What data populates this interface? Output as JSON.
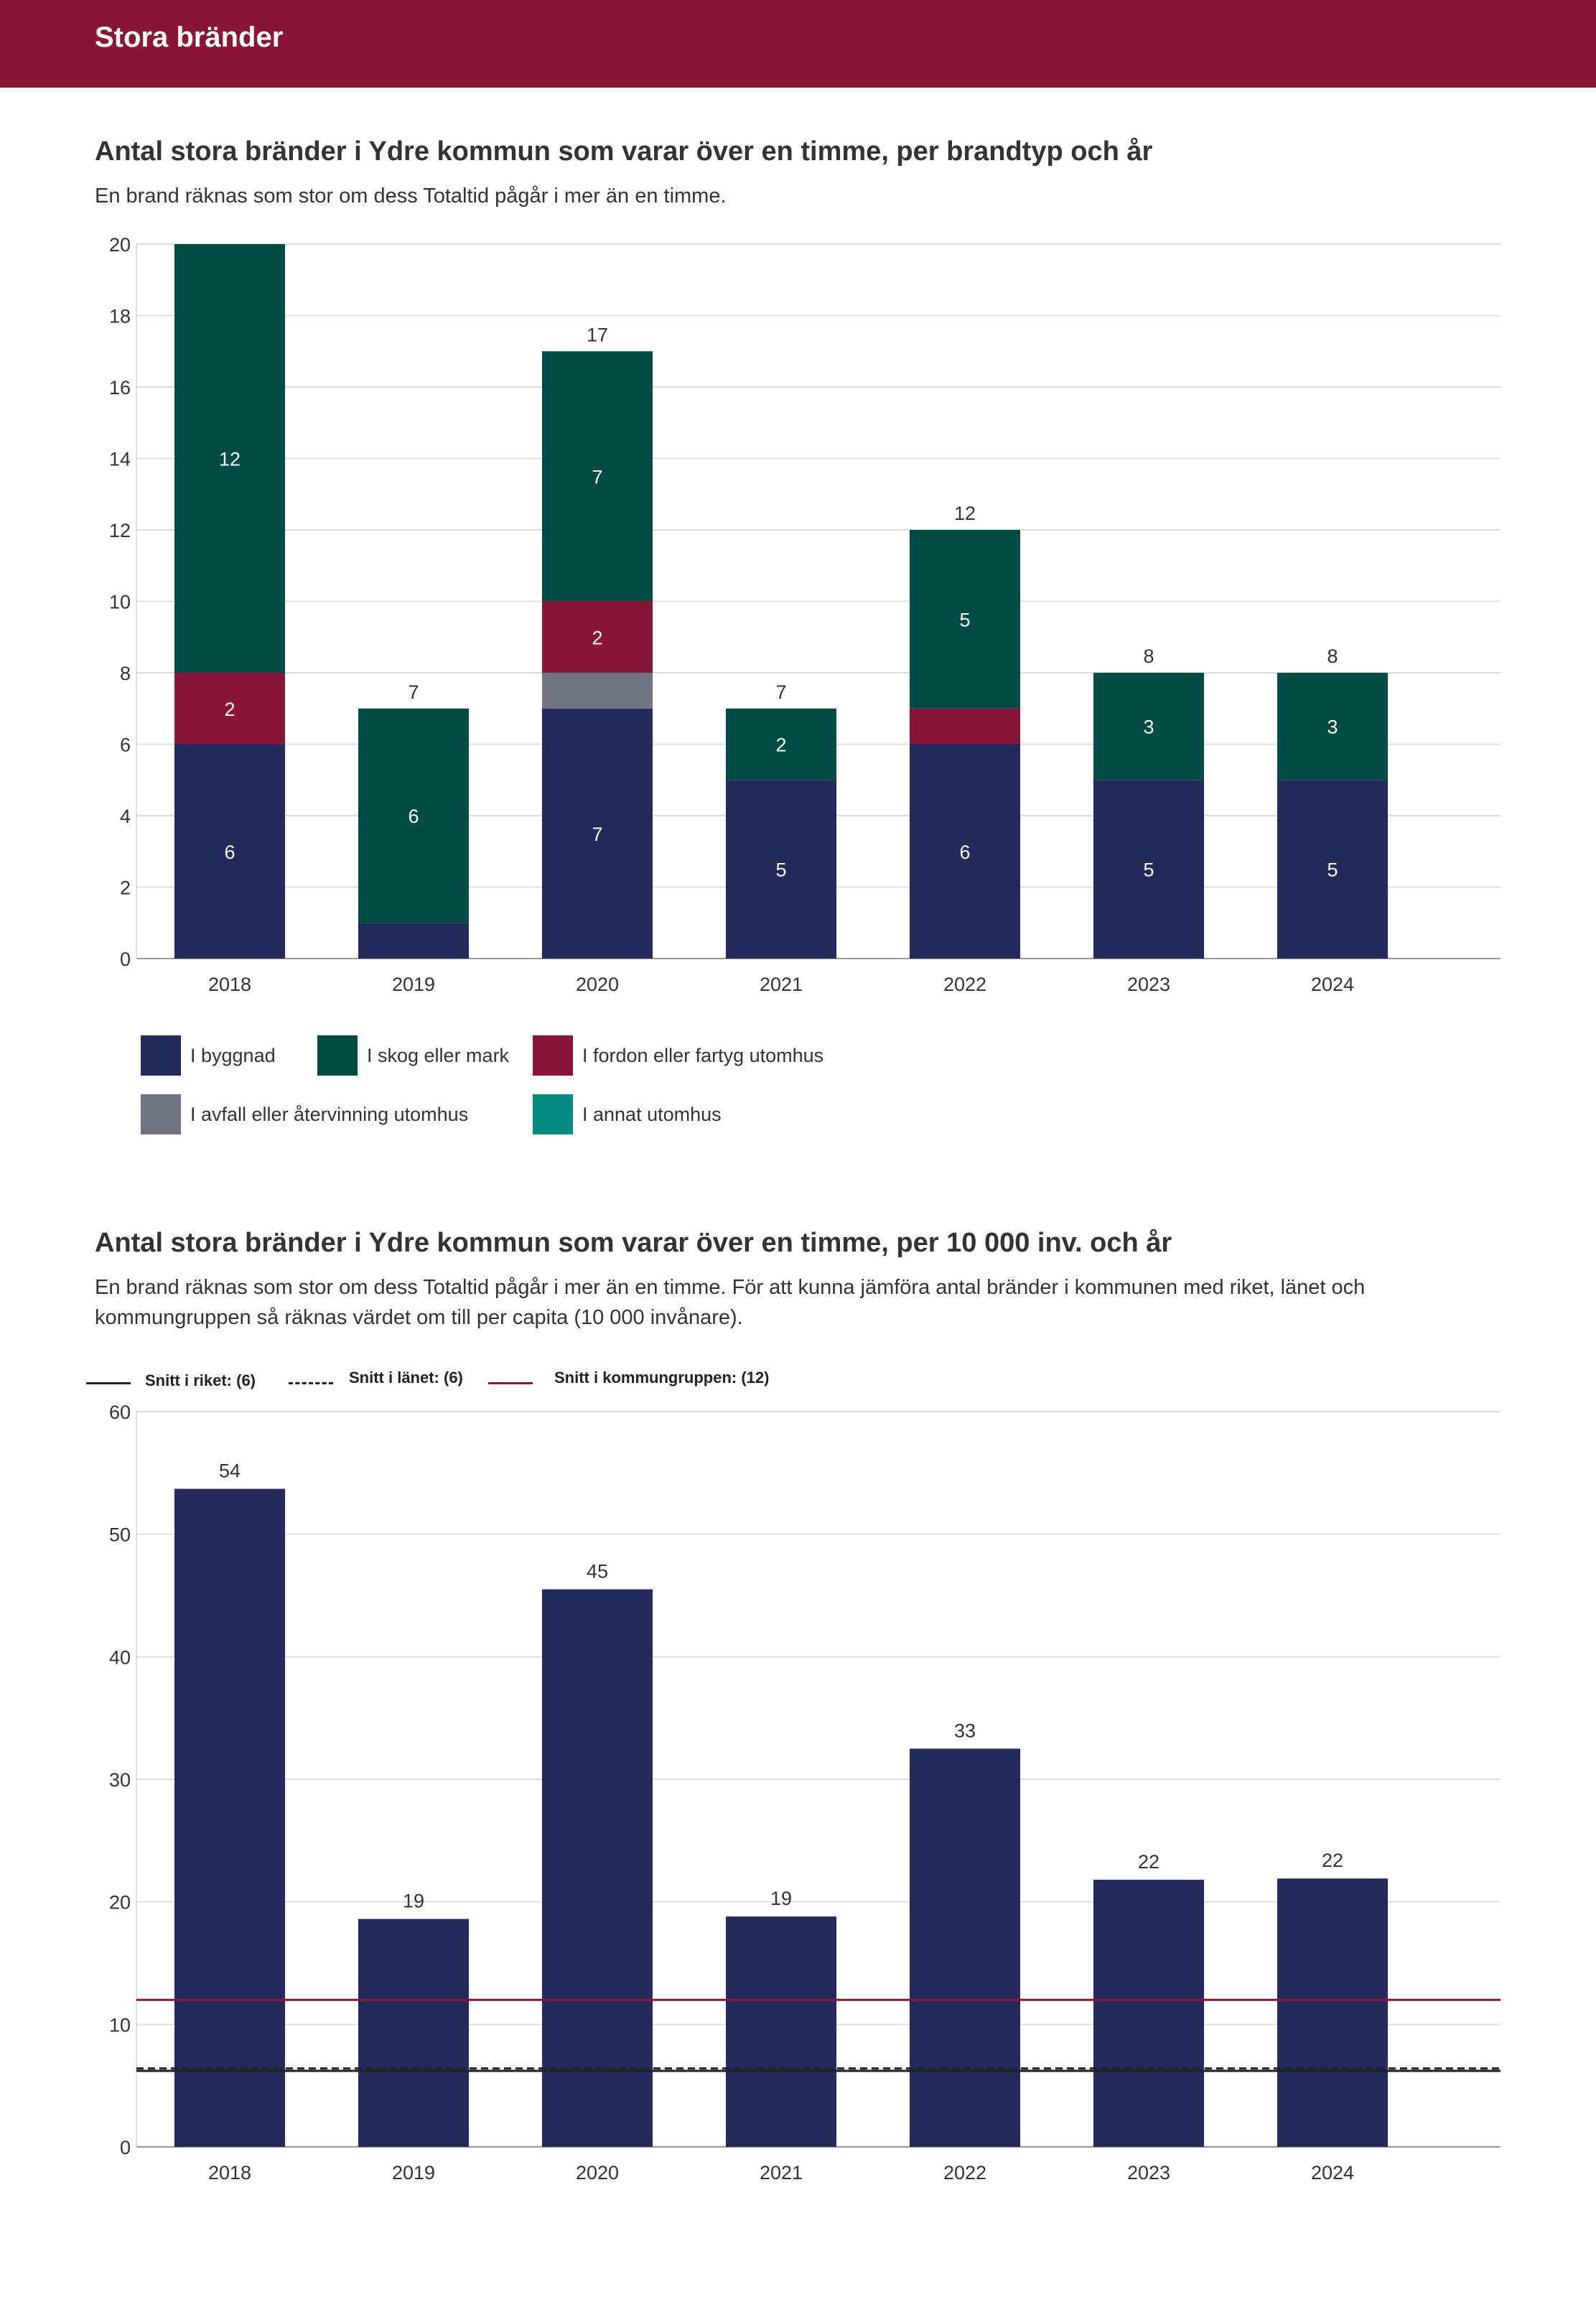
{
  "header": {
    "title": "Stora bränder"
  },
  "charts": {
    "stacked": {
      "title": "Antal stora bränder i Ydre kommun som varar över en timme, per brandtyp och år",
      "subtitle": "En brand räknas som stor om dess Totaltid pågår i mer än en timme.",
      "legend": [
        {
          "label": "I byggnad",
          "color": "#252a5c"
        },
        {
          "label": "I skog eller mark",
          "color": "#004c45"
        },
        {
          "label": "I fordon eller fartyg utomhus",
          "color": "#8b1538"
        },
        {
          "label": "I avfall eller återvinning utomhus",
          "color": "#6e7480"
        },
        {
          "label": "I annat utomhus",
          "color": "#008a80"
        }
      ]
    },
    "percapita": {
      "title": "Antal stora bränder i Ydre kommun som varar över en timme, per 10 000 inv. och år",
      "subtitle": "En brand räknas som stor om dess Totaltid pågår i mer än en timme. För att kunna jämföra antal bränder i kommunen med riket, länet och kommungruppen så räknas värdet om till per capita (10 000 invånare).",
      "reference_legend": [
        {
          "label": "Snitt i riket: (6)",
          "style": "solid",
          "color": "#222222"
        },
        {
          "label": "Snitt i länet: (6)",
          "style": "dashed",
          "color": "#222222"
        },
        {
          "label": "Snitt i kommungruppen: (12)",
          "style": "solid",
          "color": "#8b1538"
        }
      ]
    }
  },
  "chart_data": [
    {
      "type": "bar",
      "stacked": true,
      "title": "Antal stora bränder i Ydre kommun som varar över en timme, per brandtyp och år",
      "categories": [
        "2018",
        "2019",
        "2020",
        "2021",
        "2022",
        "2023",
        "2024"
      ],
      "series": [
        {
          "name": "I byggnad",
          "color": "#252a5c",
          "values": [
            6,
            1,
            7,
            5,
            6,
            5,
            5
          ],
          "labels": [
            "6",
            "",
            "7",
            "5",
            "6",
            "5",
            "5"
          ]
        },
        {
          "name": "I avfall eller återvinning utomhus",
          "color": "#6e7480",
          "values": [
            0,
            0,
            1,
            0,
            0,
            0,
            0
          ],
          "labels": [
            "",
            "",
            "",
            "",
            "",
            "",
            ""
          ]
        },
        {
          "name": "I fordon eller fartyg utomhus",
          "color": "#8b1538",
          "values": [
            2,
            0,
            2,
            0,
            1,
            0,
            0
          ],
          "labels": [
            "2",
            "",
            "2",
            "",
            "",
            "",
            ""
          ]
        },
        {
          "name": "I skog eller mark",
          "color": "#004c45",
          "values": [
            12,
            6,
            7,
            2,
            5,
            3,
            3
          ],
          "labels": [
            "12",
            "6",
            "7",
            "2",
            "5",
            "3",
            "3"
          ]
        },
        {
          "name": "I annat utomhus",
          "color": "#008a80",
          "values": [
            0,
            0,
            0,
            0,
            0,
            0,
            0
          ],
          "labels": [
            "",
            "",
            "",
            "",
            "",
            "",
            ""
          ]
        }
      ],
      "totals": [
        "",
        "7",
        "17",
        "7",
        "12",
        "8",
        "8"
      ],
      "ylim": [
        0,
        20
      ],
      "yticks": [
        0,
        2,
        4,
        6,
        8,
        10,
        12,
        14,
        16,
        18,
        20
      ],
      "grid": true
    },
    {
      "type": "bar",
      "title": "Antal stora bränder i Ydre kommun som varar över en timme, per 10 000 inv. och år",
      "categories": [
        "2018",
        "2019",
        "2020",
        "2021",
        "2022",
        "2023",
        "2024"
      ],
      "values": [
        53.7,
        18.6,
        45.5,
        18.8,
        32.5,
        21.8,
        21.9
      ],
      "labels": [
        "54",
        "19",
        "45",
        "19",
        "33",
        "22",
        "22"
      ],
      "color": "#252a5c",
      "ylim": [
        0,
        60
      ],
      "yticks": [
        0,
        10,
        20,
        30,
        40,
        50,
        60
      ],
      "grid": true,
      "reference_lines": [
        {
          "name": "Snitt i riket",
          "value": 6.2,
          "style": "solid",
          "color": "#222222"
        },
        {
          "name": "Snitt i länet",
          "value": 6.4,
          "style": "dashed",
          "color": "#222222"
        },
        {
          "name": "Snitt i kommungruppen",
          "value": 12,
          "style": "solid",
          "color": "#8b1538"
        }
      ]
    }
  ]
}
